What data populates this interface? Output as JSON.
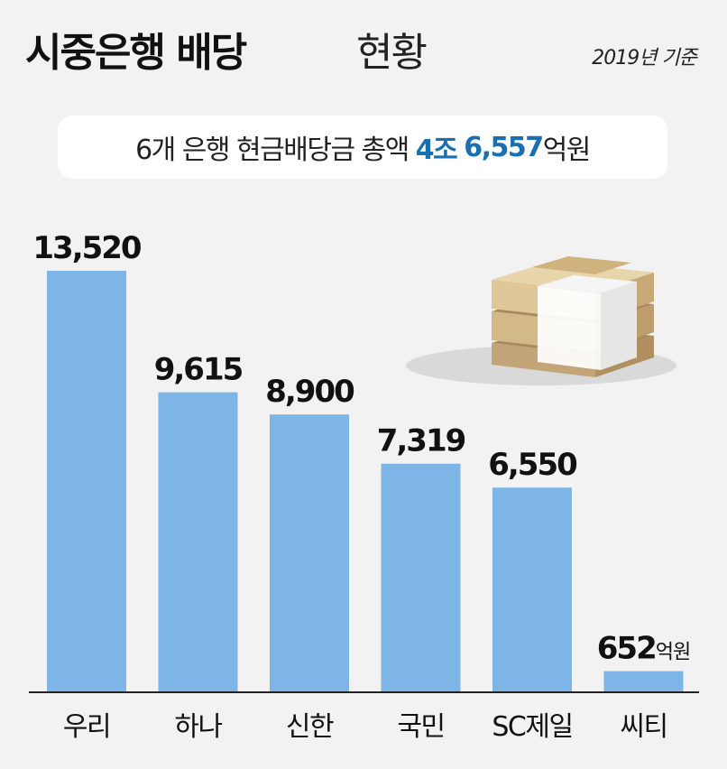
{
  "header": {
    "title_bold": "시중은행 배당",
    "title_light": "현황",
    "basis": "2019년 기준"
  },
  "summary": {
    "prefix": "6개 은행 현금배당금 총액",
    "highlight_1": "4조",
    "highlight_2": "6,557",
    "suffix": "억원"
  },
  "chart_data": {
    "type": "bar",
    "categories": [
      "우리",
      "하나",
      "신한",
      "국민",
      "SC제일",
      "씨티"
    ],
    "values": [
      13520,
      9615,
      8900,
      7319,
      6550,
      652
    ],
    "value_labels": [
      "13,520",
      "9,615",
      "8,900",
      "7,319",
      "6,550",
      "652"
    ],
    "unit": "억원",
    "unit_shown_on": "씨티",
    "bar_color": "#7cb5e6",
    "highlight_color": "#1a6fb0",
    "ylim": [
      0,
      13520
    ],
    "grid": false,
    "legend": "none"
  }
}
